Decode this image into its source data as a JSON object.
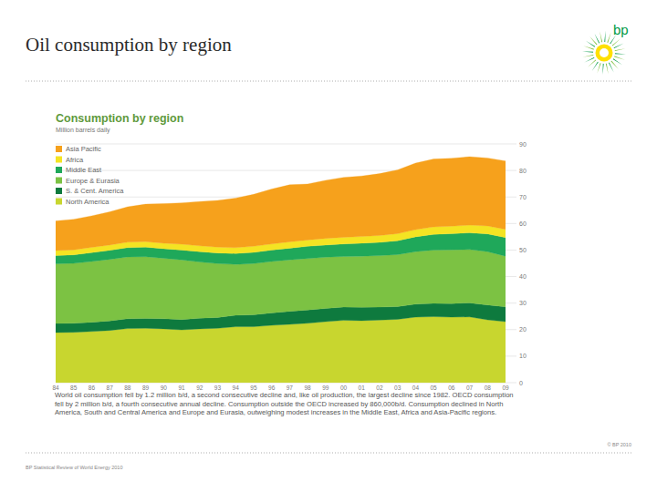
{
  "slide": {
    "title": "Oil consumption by region",
    "logo": "bp",
    "source": "BP Statistical Review of World Energy 2010",
    "copyright": "© BP 2010"
  },
  "chart_data": {
    "type": "area",
    "stacked": true,
    "title": "Consumption by region",
    "subtitle": "Million barrels daily",
    "caption": "World oil consumption fell by 1.2 million b/d, a second consecutive decline and, like oil production, the largest decline since 1982. OECD consumption fell by 2 million b/d, a fourth consecutive annual decline. Consumption outside the OECD increased by 860,000b/d. Consumption declined in North America, South and Central America and Europe and Eurasia, outweighing modest increases in the Middle East, Africa and Asia-Pacific regions.",
    "categories": [
      "84",
      "85",
      "86",
      "87",
      "88",
      "89",
      "90",
      "91",
      "92",
      "93",
      "94",
      "95",
      "96",
      "97",
      "98",
      "99",
      "00",
      "01",
      "02",
      "03",
      "04",
      "05",
      "06",
      "07",
      "08",
      "09"
    ],
    "series": [
      {
        "name": "Asia Pacific",
        "color": "#f6a11c",
        "values": [
          11.2,
          11.5,
          11.9,
          12.5,
          13.3,
          14.1,
          14.9,
          15.6,
          16.7,
          17.6,
          18.7,
          19.6,
          20.7,
          21.5,
          21.1,
          21.9,
          22.6,
          22.8,
          23.3,
          24.0,
          25.1,
          25.6,
          25.6,
          25.8,
          25.6,
          25.8
        ]
      },
      {
        "name": "Africa",
        "color": "#f4e423",
        "values": [
          1.9,
          1.9,
          2.0,
          2.0,
          2.1,
          2.1,
          2.1,
          2.2,
          2.2,
          2.2,
          2.2,
          2.3,
          2.3,
          2.4,
          2.4,
          2.5,
          2.5,
          2.5,
          2.6,
          2.7,
          2.7,
          2.8,
          2.8,
          2.9,
          3.0,
          3.1
        ]
      },
      {
        "name": "Middle East",
        "color": "#1fa85a",
        "values": [
          3.1,
          3.2,
          3.3,
          3.4,
          3.5,
          3.6,
          3.6,
          3.7,
          3.9,
          4.0,
          4.1,
          4.2,
          4.3,
          4.4,
          4.6,
          4.6,
          4.7,
          4.9,
          5.0,
          5.2,
          5.6,
          5.9,
          6.1,
          6.3,
          6.7,
          7.0
        ]
      },
      {
        "name": "Europe & Eurasia",
        "color": "#7cc243",
        "values": [
          22.5,
          22.6,
          22.9,
          23.2,
          23.3,
          23.3,
          22.8,
          22.5,
          21.2,
          20.3,
          19.2,
          19.3,
          19.4,
          19.4,
          19.4,
          19.3,
          19.1,
          19.3,
          19.4,
          19.6,
          19.8,
          20.1,
          20.3,
          20.1,
          20.1,
          19.1
        ]
      },
      {
        "name": "S. & Cent. America",
        "color": "#0e7a3e",
        "values": [
          3.4,
          3.4,
          3.5,
          3.6,
          3.7,
          3.7,
          3.8,
          3.9,
          4.0,
          4.1,
          4.3,
          4.5,
          4.7,
          4.9,
          5.0,
          5.0,
          5.0,
          5.0,
          4.9,
          4.8,
          4.9,
          5.0,
          5.1,
          5.3,
          5.6,
          5.6
        ]
      },
      {
        "name": "North America",
        "color": "#c8d62f",
        "values": [
          18.9,
          19.0,
          19.3,
          19.7,
          20.4,
          20.5,
          20.3,
          19.9,
          20.3,
          20.5,
          21.1,
          21.1,
          21.6,
          22.0,
          22.4,
          23.0,
          23.5,
          23.4,
          23.6,
          23.9,
          24.7,
          24.9,
          24.7,
          24.8,
          23.7,
          23.0
        ]
      }
    ],
    "ylim": [
      0,
      90
    ],
    "yticks": [
      0,
      10,
      20,
      30,
      40,
      50,
      60,
      70,
      80,
      90
    ],
    "grid": true,
    "legend": "top-left"
  }
}
